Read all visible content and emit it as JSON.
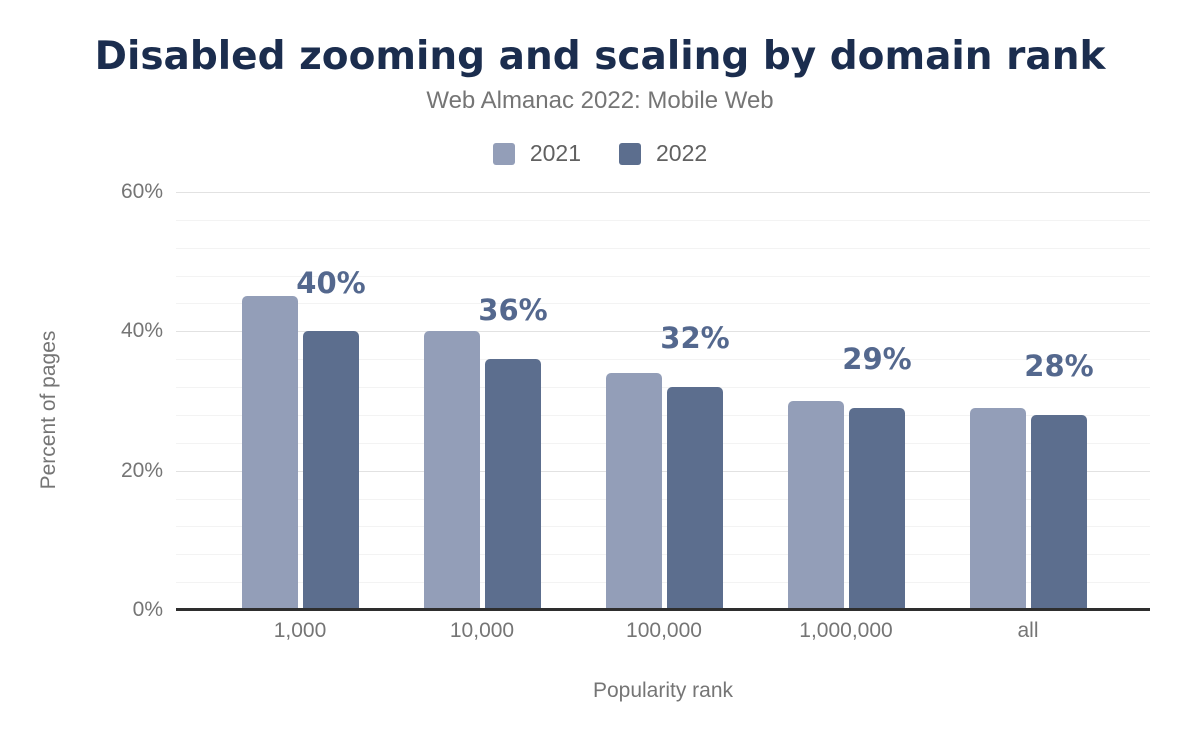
{
  "figure": {
    "background": "#ffffff"
  },
  "chart_data": {
    "type": "bar",
    "title": "Disabled zooming and scaling by domain rank",
    "subtitle": "Web Almanac 2022: Mobile Web",
    "xlabel": "Popularity rank",
    "ylabel": "Percent of pages",
    "categories": [
      "1,000",
      "10,000",
      "100,000",
      "1,000,000",
      "all"
    ],
    "series": [
      {
        "name": "2021",
        "color": "#939eb8",
        "values": [
          45,
          40,
          34,
          30,
          29
        ]
      },
      {
        "name": "2022",
        "color": "#5c6e8e",
        "values": [
          40,
          36,
          32,
          29,
          28
        ]
      }
    ],
    "value_labels": {
      "series": "2022",
      "texts": [
        "40%",
        "36%",
        "32%",
        "29%",
        "28%"
      ],
      "color": "#54688e"
    },
    "yticks": [
      {
        "label": "0%",
        "value": 0
      },
      {
        "label": "20%",
        "value": 20
      },
      {
        "label": "40%",
        "value": 40
      },
      {
        "label": "60%",
        "value": 60
      }
    ],
    "ylim": [
      0,
      60
    ],
    "grid": {
      "minor_step": 4,
      "major_step": 20,
      "minor_color": "#f3f3f3",
      "major_color": "#e2e2e2",
      "axis_line_color": "#2e2e2e"
    },
    "legend_position": "top",
    "colors": {
      "title": "#1b2d4e",
      "subtitle": "#757575",
      "axis_text": "#757575",
      "legend_text": "#616161"
    }
  }
}
